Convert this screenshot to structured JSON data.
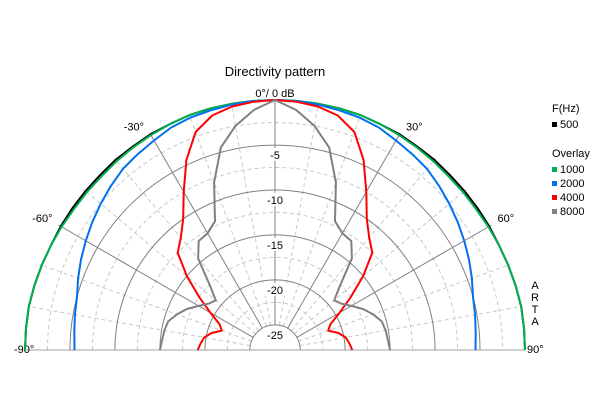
{
  "chart_data": {
    "type": "polar",
    "title": "Directivity pattern",
    "top_label": "0°/ 0 dB",
    "angle_labels": [
      {
        "angle": -90,
        "text": "-90°"
      },
      {
        "angle": -60,
        "text": "-60°"
      },
      {
        "angle": -30,
        "text": "-30°"
      },
      {
        "angle": 30,
        "text": "30°"
      },
      {
        "angle": 60,
        "text": "60°"
      },
      {
        "angle": 90,
        "text": "90°"
      }
    ],
    "radial_labels": [
      "-5",
      "-10",
      "-15",
      "-20",
      "-25"
    ],
    "radial_values": [
      -5,
      -10,
      -15,
      -20,
      -25
    ],
    "radial_range_db": [
      -27.8,
      0
    ],
    "angle_range_deg": [
      -90,
      90
    ],
    "legend": {
      "heading": "F(Hz)",
      "overlay_heading": "Overlay",
      "placement": "right"
    },
    "watermark": "ARTA",
    "angles": [
      -90,
      -85,
      -80,
      -75,
      -70,
      -65,
      -60,
      -55,
      -50,
      -45,
      -40,
      -35,
      -30,
      -25,
      -20,
      -15,
      -10,
      -5,
      0,
      5,
      10,
      15,
      20,
      25,
      30,
      35,
      40,
      45,
      50,
      55,
      60,
      65,
      70,
      75,
      80,
      85,
      90
    ],
    "series": [
      {
        "name": "500",
        "overlay": false,
        "color": "#000000",
        "values": [
          0,
          0,
          0,
          -0.1,
          -0.2,
          -0.3,
          -0.3,
          -0.3,
          -0.3,
          -0.3,
          -0.2,
          -0.2,
          -0.1,
          -0.1,
          0,
          0,
          0,
          0,
          0,
          0,
          0,
          0,
          0,
          -0.1,
          -0.1,
          -0.2,
          -0.2,
          -0.3,
          -0.3,
          -0.3,
          -0.3,
          -0.3,
          -0.2,
          -0.1,
          0,
          0,
          0
        ]
      },
      {
        "name": "1000",
        "overlay": true,
        "color": "#00b050",
        "values": [
          0,
          0,
          0,
          -0.1,
          -0.2,
          -0.3,
          -0.4,
          -0.5,
          -0.5,
          -0.5,
          -0.4,
          -0.3,
          -0.2,
          -0.1,
          0,
          0,
          0,
          0,
          0,
          0,
          0,
          0,
          0,
          -0.1,
          -0.2,
          -0.3,
          -0.4,
          -0.5,
          -0.5,
          -0.5,
          -0.4,
          -0.3,
          -0.2,
          -0.1,
          0,
          0,
          0
        ]
      },
      {
        "name": "2000",
        "overlay": true,
        "color": "#0070f0",
        "values": [
          -5.5,
          -5.4,
          -5.2,
          -5,
          -4.5,
          -4,
          -3.5,
          -3,
          -2.5,
          -2,
          -1.5,
          -1.2,
          -0.9,
          -0.5,
          -0.3,
          -0.2,
          -0.1,
          0,
          0,
          0,
          -0.1,
          -0.2,
          -0.3,
          -0.5,
          -0.9,
          -1.2,
          -1.5,
          -2,
          -2.5,
          -3,
          -3.5,
          -4,
          -4.5,
          -5,
          -5.2,
          -5.4,
          -5.5
        ]
      },
      {
        "name": "4000",
        "overlay": true,
        "color": "#ff0000",
        "values": [
          -19.2,
          -19.5,
          -19.8,
          -20.5,
          -21.5,
          -21,
          -19.5,
          -17.5,
          -15,
          -12.5,
          -11.5,
          -10,
          -7.5,
          -4.5,
          -2,
          -0.8,
          -0.3,
          -0.1,
          0,
          -0.1,
          -0.3,
          -0.8,
          -2,
          -4.5,
          -7.5,
          -10,
          -11.5,
          -12.5,
          -15,
          -17.5,
          -19.5,
          -21,
          -21.5,
          -20.5,
          -19.8,
          -19.5,
          -19.2
        ]
      },
      {
        "name": "8000",
        "overlay": true,
        "color": "#808080",
        "values": [
          -15,
          -15.2,
          -15.3,
          -15.5,
          -16.2,
          -17,
          -18,
          -18.8,
          -19.2,
          -17.5,
          -14.5,
          -13,
          -12.8,
          -12,
          -8,
          -4.5,
          -2.5,
          -1,
          0,
          -1,
          -2.5,
          -4.5,
          -8,
          -12,
          -12.8,
          -13,
          -14.5,
          -17.5,
          -19.2,
          -18.8,
          -18,
          -17,
          -16.2,
          -15.5,
          -15.3,
          -15.2,
          -15
        ]
      }
    ]
  }
}
